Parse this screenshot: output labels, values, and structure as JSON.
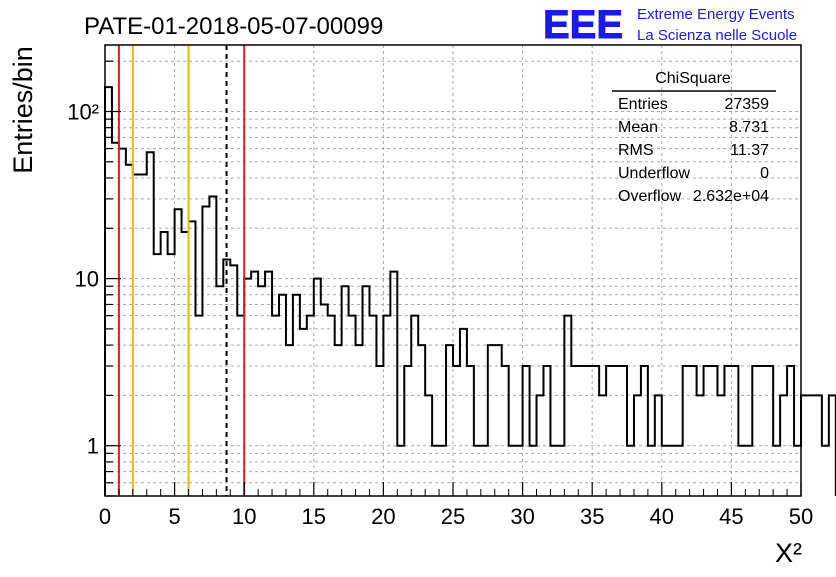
{
  "header": {
    "title": "PATE-01-2018-05-07-00099",
    "logo_text": "EEE",
    "logo_line1": "Extreme Energy Events",
    "logo_line2": "La Scienza nelle Scuole"
  },
  "stats": {
    "title": "ChiSquare",
    "rows": [
      {
        "label": "Entries",
        "value": "27359"
      },
      {
        "label": "Mean",
        "value": "8.731"
      },
      {
        "label": "RMS",
        "value": "11.37"
      },
      {
        "label": "Underflow",
        "value": "0"
      },
      {
        "label": "Overflow",
        "value": "2.632e+04"
      }
    ]
  },
  "colors": {
    "red": "#e02020",
    "yellow": "#f0b800",
    "logo_blue": "#1a1aee",
    "grid": "#a8a8a8"
  },
  "chart_data": {
    "type": "histogram",
    "ylabel": "Entries/bin",
    "xlabel": "X²",
    "xlim": [
      0,
      50
    ],
    "ylim": [
      0.5,
      250
    ],
    "yscale": "log",
    "grid": true,
    "bin_width": 0.5,
    "bin_edges_start": 0,
    "values": [
      140,
      65,
      60,
      48,
      42,
      42,
      57,
      14,
      19,
      14,
      26,
      19,
      22,
      6,
      27,
      31,
      9,
      13,
      12,
      6,
      10,
      11,
      9,
      11,
      6,
      8,
      4,
      8,
      5,
      6,
      10,
      7,
      6,
      4,
      9,
      6,
      4,
      9,
      6,
      3,
      6,
      11,
      1,
      3,
      6,
      4,
      2,
      1,
      1,
      4,
      3,
      5,
      3,
      1,
      1,
      4,
      4,
      3,
      1,
      1,
      3,
      1,
      2,
      3,
      1,
      1,
      6,
      3,
      3,
      3,
      3,
      2,
      3,
      3,
      3,
      1,
      2,
      3,
      1,
      2,
      1,
      1,
      1,
      3,
      3,
      2,
      3,
      3,
      2,
      3,
      3,
      1,
      1,
      3,
      3,
      3,
      1,
      2,
      3,
      1,
      2,
      2,
      2,
      1,
      2
    ],
    "xticks": [
      0,
      5,
      10,
      15,
      20,
      25,
      30,
      35,
      40,
      45,
      50
    ],
    "xtick_labels": [
      "0",
      "5",
      "10",
      "15",
      "20",
      "25",
      "30",
      "35",
      "40",
      "45",
      "50"
    ],
    "yticks": [
      1,
      10,
      100
    ],
    "ytick_labels": [
      "1",
      "10",
      "10²"
    ],
    "vlines": [
      {
        "x": 1,
        "color": "red",
        "style": "solid"
      },
      {
        "x": 2,
        "color": "yellow",
        "style": "solid"
      },
      {
        "x": 6,
        "color": "yellow",
        "style": "solid"
      },
      {
        "x": 8.731,
        "color": "black",
        "style": "dashed"
      },
      {
        "x": 10,
        "color": "red",
        "style": "solid"
      }
    ]
  }
}
